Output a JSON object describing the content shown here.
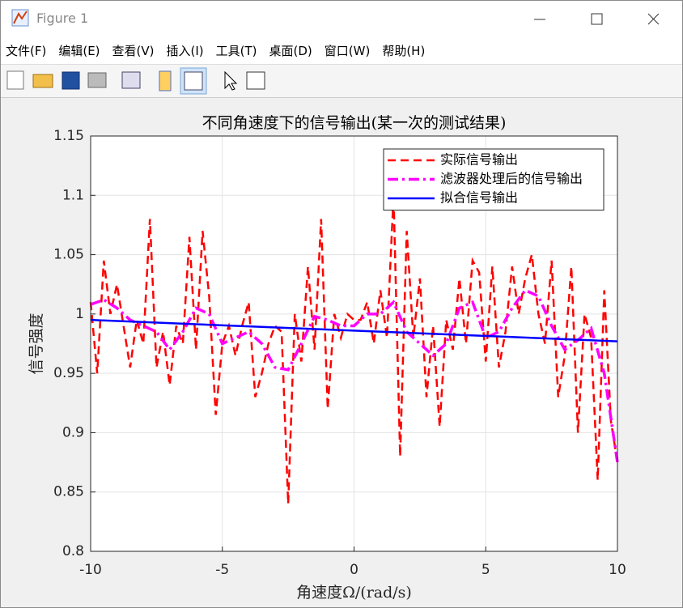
{
  "window": {
    "title": "Figure 1",
    "menu": [
      "文件(F)",
      "编辑(E)",
      "查看(V)",
      "插入(I)",
      "工具(T)",
      "桌面(D)",
      "窗口(W)",
      "帮助(H)"
    ]
  },
  "chart_data": {
    "type": "line",
    "title": "不同角速度下的信号输出(某一次的测试结果)",
    "xlabel": "角速度Ω/(rad/s)",
    "ylabel": "信号强度",
    "xlim": [
      -10,
      10
    ],
    "xticks": [
      -10,
      -5,
      0,
      5,
      10
    ],
    "ylim": [
      0.8,
      1.15
    ],
    "yticks": [
      0.8,
      0.85,
      0.9,
      0.95,
      1,
      1.05,
      1.1,
      1.15
    ],
    "grid": true,
    "legend": "northeast",
    "series": [
      {
        "name": "实际信号输出",
        "color": "#ff0000",
        "style": "dashed",
        "x": [
          -10,
          -9.75,
          -9.5,
          -9.25,
          -9,
          -8.75,
          -8.5,
          -8.25,
          -8,
          -7.75,
          -7.5,
          -7.25,
          -7,
          -6.75,
          -6.5,
          -6.25,
          -6,
          -5.75,
          -5.5,
          -5.25,
          -5,
          -4.75,
          -4.5,
          -4.25,
          -4,
          -3.75,
          -3.5,
          -3.25,
          -3,
          -2.75,
          -2.5,
          -2.25,
          -2,
          -1.75,
          -1.5,
          -1.25,
          -1,
          -0.75,
          -0.5,
          -0.25,
          0,
          0.25,
          0.5,
          0.75,
          1,
          1.25,
          1.5,
          1.75,
          2,
          2.25,
          2.5,
          2.75,
          3,
          3.25,
          3.5,
          3.75,
          4,
          4.25,
          4.5,
          4.75,
          5,
          5.25,
          5.5,
          5.75,
          6,
          6.25,
          6.5,
          6.75,
          7,
          7.25,
          7.5,
          7.75,
          8,
          8.25,
          8.5,
          8.75,
          9,
          9.25,
          9.5,
          9.75,
          10
        ],
        "values": [
          1.01,
          0.95,
          1.045,
          1.0,
          1.025,
          0.99,
          0.955,
          0.995,
          0.975,
          1.08,
          0.955,
          0.985,
          0.94,
          0.99,
          0.975,
          1.065,
          0.97,
          1.07,
          1.015,
          0.915,
          0.975,
          0.99,
          0.965,
          0.99,
          1.01,
          0.93,
          0.95,
          0.975,
          0.99,
          0.985,
          0.84,
          1.0,
          0.96,
          1.04,
          0.97,
          1.08,
          0.92,
          1.0,
          0.98,
          1.0,
          0.995,
          0.995,
          1.01,
          0.975,
          1.02,
          0.98,
          1.1,
          0.88,
          1.07,
          0.98,
          1.03,
          0.93,
          0.99,
          0.905,
          0.995,
          0.97,
          1.03,
          0.975,
          1.045,
          1.035,
          0.96,
          1.04,
          0.955,
          0.985,
          1.04,
          1.0,
          1.03,
          1.05,
          1.0,
          0.975,
          1.045,
          0.93,
          0.965,
          1.04,
          0.9,
          1.0,
          0.98,
          0.86,
          1.02,
          0.91,
          0.875
        ]
      },
      {
        "name": "滤波器处理后的信号输出",
        "color": "#ff00ff",
        "style": "dashdot",
        "x": [
          -10,
          -9.5,
          -9,
          -8.5,
          -8,
          -7.5,
          -7,
          -6.5,
          -6,
          -5.5,
          -5,
          -4.5,
          -4,
          -3.5,
          -3,
          -2.5,
          -2,
          -1.5,
          -1,
          -0.5,
          0,
          0.5,
          1,
          1.5,
          2,
          2.5,
          3,
          3.5,
          4,
          4.5,
          5,
          5.5,
          6,
          6.5,
          7,
          7.5,
          8,
          8.5,
          9,
          9.5,
          10
        ],
        "values": [
          1.008,
          1.012,
          1.005,
          0.995,
          0.99,
          0.985,
          0.97,
          0.985,
          1.005,
          1.0,
          0.975,
          0.98,
          0.985,
          0.975,
          0.955,
          0.953,
          0.975,
          0.998,
          0.995,
          0.99,
          0.99,
          1.0,
          1.0,
          1.01,
          0.985,
          0.975,
          0.965,
          0.975,
          1.005,
          1.01,
          0.98,
          0.985,
          1.005,
          1.02,
          1.015,
          0.99,
          0.97,
          0.978,
          0.988,
          0.95,
          0.875
        ]
      },
      {
        "name": "拟合信号输出",
        "color": "#0000ff",
        "style": "solid",
        "x": [
          -10,
          10
        ],
        "values": [
          0.995,
          0.977
        ]
      }
    ]
  }
}
